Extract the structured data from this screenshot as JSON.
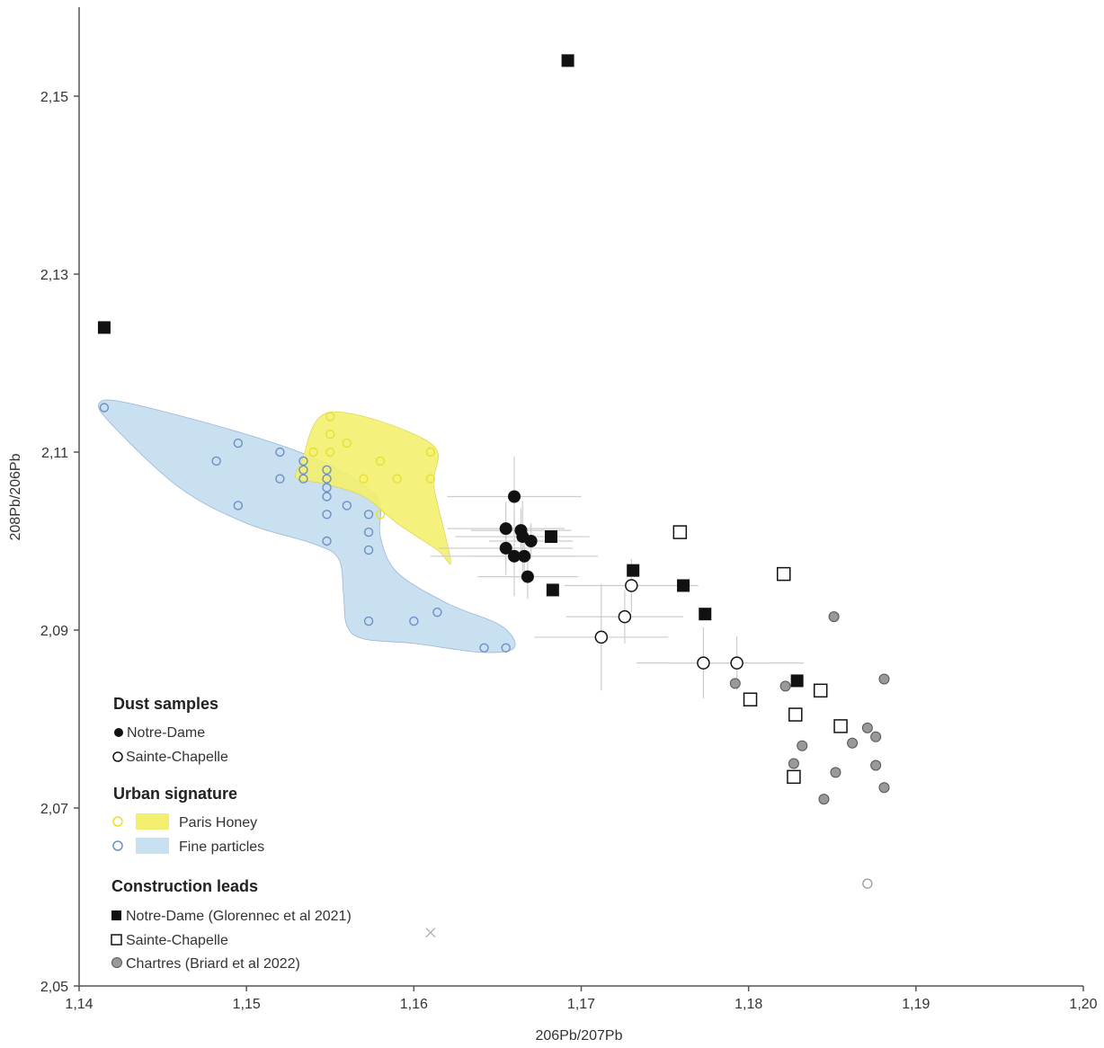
{
  "chart_data": {
    "type": "scatter",
    "xlabel": "206Pb/207Pb",
    "ylabel": "208Pb/206Pb",
    "xlim": [
      1.14,
      1.2
    ],
    "ylim": [
      2.05,
      2.16
    ],
    "x_ticks": [
      1.14,
      1.15,
      1.16,
      1.17,
      1.18,
      1.19,
      1.2
    ],
    "y_ticks": [
      2.05,
      2.07,
      2.09,
      2.11,
      2.13,
      2.15
    ],
    "x_tick_labels": [
      "1,14",
      "1,15",
      "1,16",
      "1,17",
      "1,18",
      "1,19",
      "1,20"
    ],
    "y_tick_labels": [
      "2,05",
      "2,07",
      "2,09",
      "2,11",
      "2,13",
      "2,15"
    ],
    "grid": false,
    "legend_position": "bottom-left",
    "legend": {
      "dust_title": "Dust samples",
      "dust_nd": "Notre-Dame",
      "dust_sc": "Sainte-Chapelle",
      "urban_title": "Urban signature",
      "urban_honey": "Paris Honey",
      "urban_fine": "Fine particles",
      "construction_title": "Construction leads",
      "cons_nd": "Notre-Dame (Glorennec et al 2021)",
      "cons_sc": "Sainte-Chapelle",
      "cons_chartres": "Chartres (Briard et al 2022)"
    },
    "colors": {
      "black": "#111111",
      "gray_fill": "#999999",
      "honey_point": "#e8e030",
      "honey_area": "#f3ef6e",
      "fine_point": "#6d8fc4",
      "fine_area": "#c9e0f0",
      "error_bar": "#cccccc"
    },
    "series": [
      {
        "name": "Notre-Dame",
        "group": "Dust samples",
        "marker": "filled-circle",
        "points": [
          [
            1.166,
            2.105
          ],
          [
            1.1655,
            2.1014
          ],
          [
            1.1664,
            2.1012
          ],
          [
            1.1665,
            2.1005
          ],
          [
            1.167,
            2.1
          ],
          [
            1.1655,
            2.0992
          ],
          [
            1.166,
            2.0983
          ],
          [
            1.1666,
            2.0983
          ],
          [
            1.1668,
            2.096
          ]
        ],
        "x_err": [
          0.004,
          0.0035,
          0.003,
          0.004,
          0.0025,
          0.004,
          0.005,
          0.003,
          0.003
        ],
        "y_err": [
          0.0045,
          0.003,
          0.0025,
          0.004,
          0.002,
          0.003,
          0.0045,
          0.003,
          0.0025
        ]
      },
      {
        "name": "Sainte-Chapelle",
        "group": "Dust samples",
        "marker": "open-circle",
        "points": [
          [
            1.173,
            2.095
          ],
          [
            1.1726,
            2.0915
          ],
          [
            1.1712,
            2.0892
          ],
          [
            1.1773,
            2.0863
          ],
          [
            1.1793,
            2.0863
          ]
        ],
        "x_err": [
          0.004,
          0.0035,
          0.004,
          0.004,
          0.004
        ],
        "y_err": [
          0.003,
          0.003,
          0.006,
          0.004,
          0.003
        ]
      },
      {
        "name": "Paris Honey",
        "group": "Urban signature",
        "marker": "open-circle-small",
        "points": [
          [
            1.155,
            2.114
          ],
          [
            1.155,
            2.112
          ],
          [
            1.156,
            2.111
          ],
          [
            1.154,
            2.11
          ],
          [
            1.155,
            2.11
          ],
          [
            1.158,
            2.109
          ],
          [
            1.157,
            2.107
          ],
          [
            1.159,
            2.107
          ],
          [
            1.161,
            2.11
          ],
          [
            1.161,
            2.107
          ],
          [
            1.158,
            2.103
          ]
        ],
        "polygon": [
          [
            1.1533,
            2.109
          ],
          [
            1.155,
            2.1145
          ],
          [
            1.161,
            2.111
          ],
          [
            1.1612,
            2.106
          ],
          [
            1.1622,
            2.0978
          ],
          [
            1.1614,
            2.099
          ],
          [
            1.159,
            2.102
          ],
          [
            1.157,
            2.105
          ],
          [
            1.1545,
            2.1065
          ],
          [
            1.153,
            2.107
          ]
        ]
      },
      {
        "name": "Fine particles",
        "group": "Urban signature",
        "marker": "open-circle-small",
        "points": [
          [
            1.1415,
            2.115
          ],
          [
            1.1495,
            2.111
          ],
          [
            1.1482,
            2.109
          ],
          [
            1.152,
            2.11
          ],
          [
            1.152,
            2.107
          ],
          [
            1.1495,
            2.104
          ],
          [
            1.1534,
            2.109
          ],
          [
            1.1534,
            2.108
          ],
          [
            1.1534,
            2.107
          ],
          [
            1.1548,
            2.108
          ],
          [
            1.1548,
            2.107
          ],
          [
            1.1548,
            2.106
          ],
          [
            1.1548,
            2.105
          ],
          [
            1.1548,
            2.103
          ],
          [
            1.1548,
            2.1
          ],
          [
            1.156,
            2.104
          ],
          [
            1.1573,
            2.103
          ],
          [
            1.1573,
            2.101
          ],
          [
            1.1573,
            2.099
          ],
          [
            1.1573,
            2.091
          ],
          [
            1.16,
            2.091
          ],
          [
            1.1614,
            2.092
          ],
          [
            1.1642,
            2.088
          ],
          [
            1.1655,
            2.088
          ]
        ],
        "polygon": [
          [
            1.1412,
            2.1155
          ],
          [
            1.143,
            2.1155
          ],
          [
            1.15,
            2.112
          ],
          [
            1.1545,
            2.109
          ],
          [
            1.1572,
            2.106
          ],
          [
            1.158,
            2.104
          ],
          [
            1.158,
            2.1005
          ],
          [
            1.159,
            2.0965
          ],
          [
            1.162,
            2.093
          ],
          [
            1.1652,
            2.0905
          ],
          [
            1.166,
            2.088
          ],
          [
            1.164,
            2.0875
          ],
          [
            1.16,
            2.0885
          ],
          [
            1.157,
            2.089
          ],
          [
            1.156,
            2.0905
          ],
          [
            1.1558,
            2.094
          ],
          [
            1.1555,
            2.098
          ],
          [
            1.154,
            2.0997
          ],
          [
            1.15,
            2.102
          ],
          [
            1.146,
            2.106
          ],
          [
            1.142,
            2.113
          ]
        ]
      },
      {
        "name": "Notre-Dame (Glorennec et al 2021)",
        "group": "Construction leads",
        "marker": "filled-square",
        "points": [
          [
            1.1415,
            2.124
          ],
          [
            1.1692,
            2.154
          ],
          [
            1.1682,
            2.1005
          ],
          [
            1.1683,
            2.0945
          ],
          [
            1.1731,
            2.0967
          ],
          [
            1.1761,
            2.095
          ],
          [
            1.1774,
            2.0918
          ],
          [
            1.1829,
            2.0843
          ]
        ]
      },
      {
        "name": "Sainte-Chapelle",
        "group": "Construction leads",
        "marker": "open-square",
        "points": [
          [
            1.1759,
            2.101
          ],
          [
            1.1821,
            2.0963
          ],
          [
            1.1843,
            2.0832
          ],
          [
            1.1801,
            2.0822
          ],
          [
            1.1828,
            2.0805
          ],
          [
            1.1855,
            2.0792
          ],
          [
            1.1827,
            2.0735
          ]
        ]
      },
      {
        "name": "Chartres (Briard et al 2022)",
        "group": "Construction leads",
        "marker": "gray-circle",
        "points": [
          [
            1.1851,
            2.0915
          ],
          [
            1.1881,
            2.0845
          ],
          [
            1.1792,
            2.084
          ],
          [
            1.1822,
            2.0837
          ],
          [
            1.1871,
            2.079
          ],
          [
            1.1876,
            2.078
          ],
          [
            1.1862,
            2.0773
          ],
          [
            1.1832,
            2.077
          ],
          [
            1.1827,
            2.075
          ],
          [
            1.1876,
            2.0748
          ],
          [
            1.1852,
            2.074
          ],
          [
            1.1881,
            2.0723
          ],
          [
            1.1845,
            2.071
          ]
        ]
      },
      {
        "name": "",
        "marker": "open-circle-gray",
        "points": [
          [
            1.1871,
            2.0615
          ]
        ]
      },
      {
        "name": "",
        "marker": "cross",
        "points": [
          [
            1.161,
            2.056
          ]
        ]
      }
    ]
  }
}
